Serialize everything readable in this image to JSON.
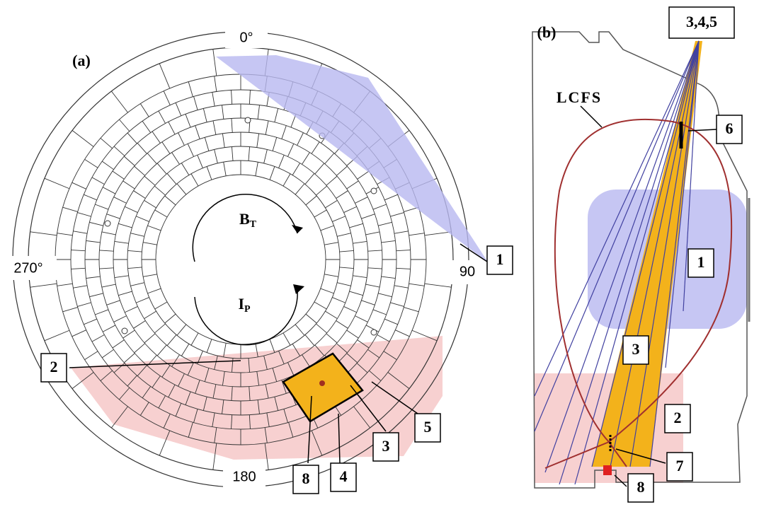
{
  "panel_a": {
    "label": "(a)",
    "angles": [
      "0°",
      "90",
      "180",
      "270°"
    ],
    "field_label": {
      "main": "B",
      "sub": "T"
    },
    "current_label": {
      "main": "I",
      "sub": "P"
    },
    "callouts": [
      "1",
      "2",
      "3",
      "4",
      "5",
      "8"
    ]
  },
  "panel_b": {
    "label": "(b)",
    "source": "3,4,5",
    "lcfs": "LCFS",
    "callouts": [
      "6",
      "1",
      "3",
      "2",
      "7",
      "8"
    ]
  }
}
